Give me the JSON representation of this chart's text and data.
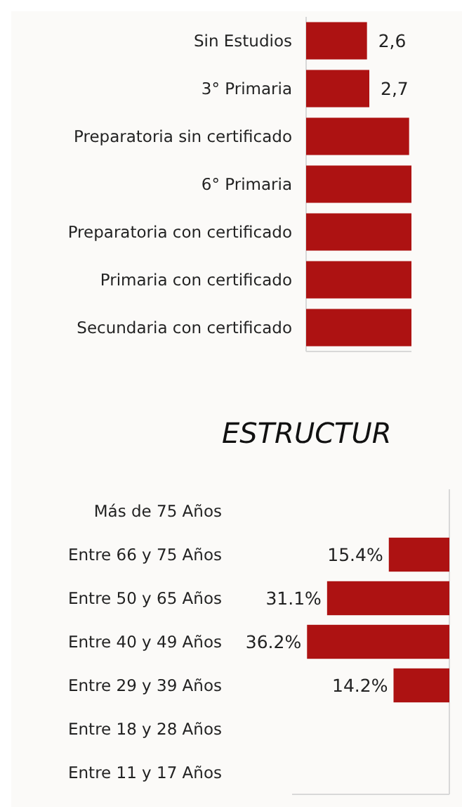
{
  "chart_data": [
    {
      "type": "bar",
      "orientation": "horizontal",
      "categories": [
        "Sin Estudios",
        "3° Primaria",
        "Preparatoria sin certificado",
        "6° Primaria",
        "Preparatoria con certificado",
        "Primaria con certificado",
        "Secundaria con certificado"
      ],
      "values": [
        2.6,
        2.7,
        4.4,
        4.5,
        4.5,
        4.5,
        4.5
      ],
      "value_labels": [
        "2,6",
        "2,7",
        null,
        null,
        null,
        null,
        null
      ],
      "color": "#ad1212",
      "xlim": [
        0,
        4.5
      ],
      "tick_labels": "y"
    },
    {
      "type": "bar",
      "orientation": "horizontal",
      "title": "ESTRUCTUR",
      "categories": [
        "Más de 75 Años",
        "Entre 66 y 75 Años",
        "Entre 50 y 65 Años",
        "Entre 40 y 49 Años",
        "Entre 29 y 39 Años",
        "Entre 18 y 28 Años",
        "Entre 11 y 17 Años"
      ],
      "values": [
        null,
        15.4,
        31.1,
        36.2,
        14.2,
        null,
        null
      ],
      "value_labels": [
        null,
        "15.4%",
        "31.1%",
        "36.2%",
        "14.2%",
        null,
        null
      ],
      "color": "#ad1212",
      "xlim": [
        40,
        0
      ],
      "tick_labels": "y"
    }
  ]
}
